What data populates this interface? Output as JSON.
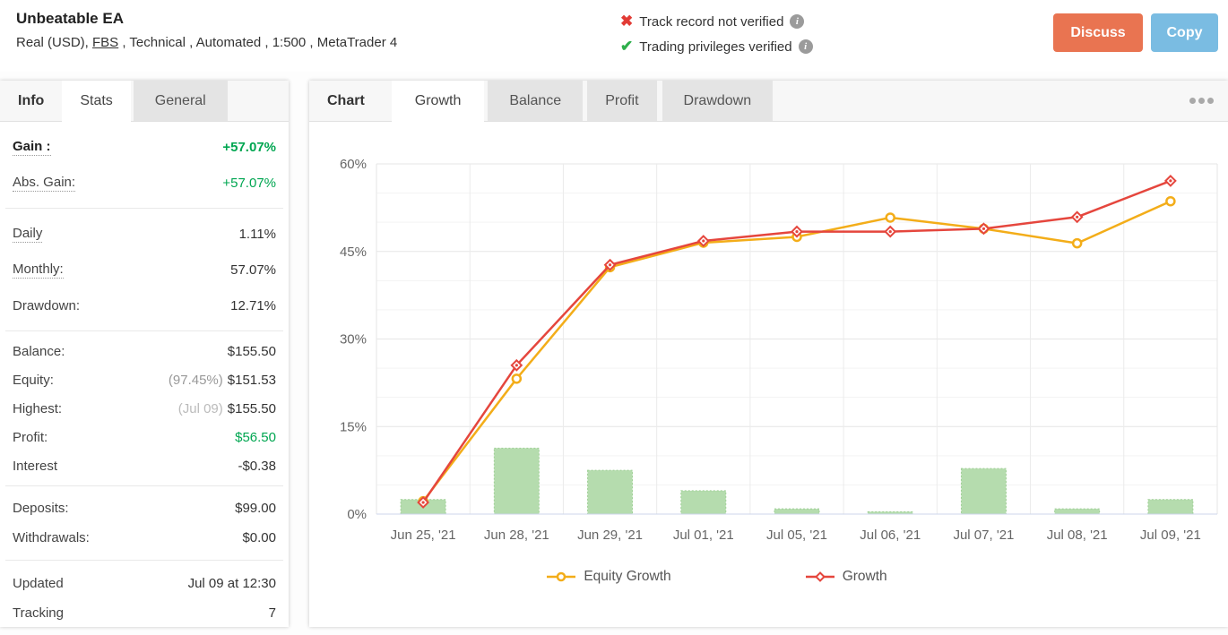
{
  "header": {
    "title": "Unbeatable EA",
    "subtitle": {
      "prefix": "Real (USD), ",
      "broker_link": "FBS",
      "suffix": " , Technical , Automated , 1:500 , MetaTrader 4"
    },
    "verifications": [
      {
        "status": "not-verified",
        "icon": "red-cross-icon",
        "text": "Track record not verified"
      },
      {
        "status": "verified",
        "icon": "green-check-icon",
        "text": "Trading privileges verified"
      }
    ],
    "info_icon_glyph": "i",
    "discuss_button": "Discuss",
    "copy_button": "Copy"
  },
  "sidebar": {
    "tabs": [
      "Info",
      "Stats",
      "General"
    ],
    "active_tab": "Stats",
    "rows": {
      "gain": {
        "label": "Gain :",
        "value": "+57.07%"
      },
      "abs_gain": {
        "label": "Abs. Gain:",
        "value": "+57.07%"
      },
      "daily": {
        "label": "Daily",
        "value": "1.11%"
      },
      "monthly": {
        "label": "Monthly:",
        "value": "57.07%"
      },
      "drawdown": {
        "label": "Drawdown:",
        "value": "12.71%"
      },
      "balance": {
        "label": "Balance:",
        "value": "$155.50"
      },
      "equity": {
        "label": "Equity:",
        "note": "(97.45%)",
        "value": "$151.53"
      },
      "highest": {
        "label": "Highest:",
        "note": "(Jul 09)",
        "value": "$155.50"
      },
      "profit": {
        "label": "Profit:",
        "value": "$56.50"
      },
      "interest": {
        "label": "Interest",
        "value": "-$0.38"
      },
      "deposits": {
        "label": "Deposits:",
        "value": "$99.00"
      },
      "withdrawals": {
        "label": "Withdrawals:",
        "value": "$0.00"
      },
      "updated": {
        "label": "Updated",
        "value": "Jul 09 at 12:30"
      },
      "tracking": {
        "label": "Tracking",
        "value": "7"
      }
    }
  },
  "chart_panel": {
    "tabs": [
      "Chart",
      "Growth",
      "Balance",
      "Profit",
      "Drawdown"
    ],
    "active_tab": "Growth",
    "overflow_menu": "ellipsis-menu"
  },
  "chart_data": {
    "type": "line+bar",
    "categories": [
      "Jun 25, '21",
      "Jun 28, '21",
      "Jun 29, '21",
      "Jul 01, '21",
      "Jul 05, '21",
      "Jul 06, '21",
      "Jul 07, '21",
      "Jul 08, '21",
      "Jul 09, '21"
    ],
    "series": [
      {
        "name": "Equity Growth",
        "marker": "circle",
        "color": "#f3ad19",
        "values": [
          2.2,
          23.2,
          42.3,
          46.5,
          47.5,
          50.8,
          48.9,
          46.4,
          53.6
        ]
      },
      {
        "name": "Growth",
        "marker": "diamond",
        "color": "#e5463d",
        "values": [
          2.0,
          25.5,
          42.7,
          46.8,
          48.4,
          48.4,
          48.9,
          50.9,
          57.1
        ]
      }
    ],
    "bars": {
      "color": "#b5dcae",
      "border": "#9ed095",
      "values": [
        2.5,
        11.3,
        7.5,
        4.0,
        0.9,
        0.4,
        7.8,
        0.9,
        2.5
      ]
    },
    "ylim": [
      0,
      60
    ],
    "ytick_step": 15,
    "yminor_step": 5,
    "ytick_suffix": "%",
    "grid": true,
    "legend_position": "bottom"
  }
}
